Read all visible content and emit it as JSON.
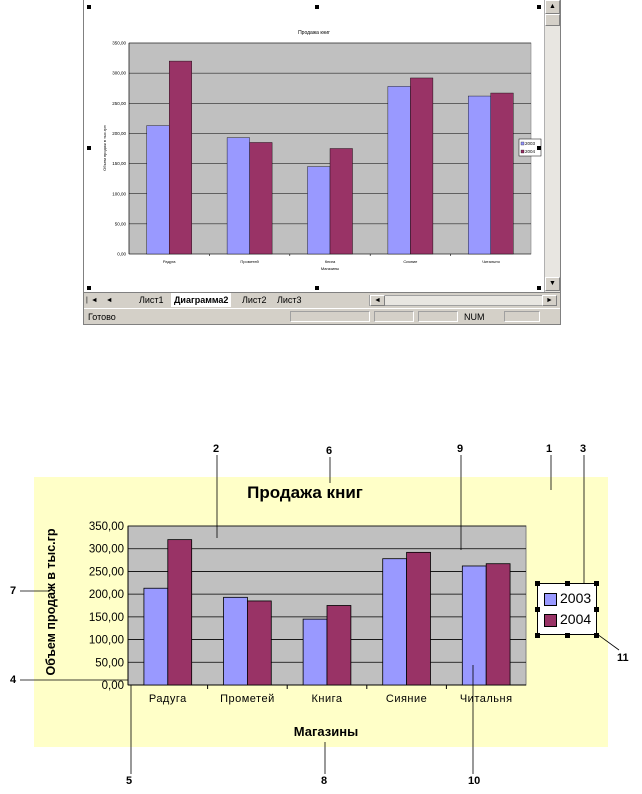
{
  "excel": {
    "chart": {
      "title": "Продажа книг",
      "xlabel": "Магазины",
      "ylabel": "Объем продаж в тыс.грн",
      "legend": [
        "2003",
        "2004"
      ]
    },
    "tabs": [
      "Лист1",
      "Диаграмма2",
      "Лист2",
      "Лист3"
    ],
    "active_tab": "Диаграмма2",
    "status_left": "Готово",
    "status_num": "NUM",
    "tab_nav_icons": "|◄ ◄ ► ►|"
  },
  "colors": {
    "series_2003": "#9999ff",
    "series_2004": "#993366",
    "plot_area": "#c0c0c0",
    "chart_area_bottom": "#ffffc8"
  },
  "chart_data": {
    "type": "bar",
    "title": "Продажа книг",
    "xlabel": "Магазины",
    "ylabel": "Объем продаж в тыс.грн",
    "categories": [
      "Радуга",
      "Прометей",
      "Книга",
      "Сияние",
      "Читальня"
    ],
    "series": [
      {
        "name": "2003",
        "values": [
          213,
          193,
          145,
          278,
          262
        ]
      },
      {
        "name": "2004",
        "values": [
          320,
          185,
          175,
          292,
          267
        ]
      }
    ],
    "ylim": [
      0,
      350
    ],
    "yticks": [
      "0,00",
      "50,00",
      "100,00",
      "150,00",
      "200,00",
      "250,00",
      "300,00",
      "350,00"
    ],
    "grid": true,
    "legend_position": "right"
  },
  "callouts": [
    "1",
    "2",
    "3",
    "4",
    "5",
    "6",
    "7",
    "8",
    "9",
    "10",
    "11"
  ],
  "big_chart": {
    "title": "Продажа книг",
    "xlabel": "Магазины",
    "ylabel": "Объем продаж в тыс.гр",
    "categories_display": [
      "Радуга",
      "Прометей",
      "Книга",
      "Сияние",
      "Читальня"
    ]
  }
}
